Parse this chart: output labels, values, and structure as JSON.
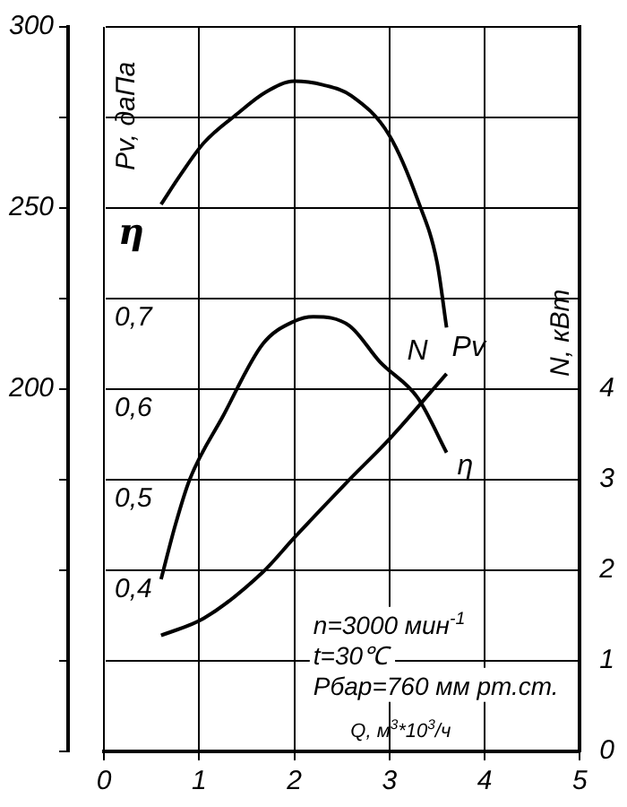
{
  "chart_data": {
    "type": "line",
    "xlabel": "Q, м$^{3}$*10$^{3}$/ч",
    "ylabel": "Pv, даПа",
    "y2label": "N, кВт",
    "y3label": "η",
    "xlim": [
      0,
      5
    ],
    "xticks": [
      0,
      1,
      2,
      3,
      4,
      5
    ],
    "ylim": [
      100,
      300
    ],
    "yticks": [
      {
        "value": 100,
        "label": null
      },
      {
        "value": 125,
        "label": null
      },
      {
        "value": 150,
        "label": null
      },
      {
        "value": 175,
        "label": null
      },
      200,
      {
        "value": 225,
        "label": null
      },
      250,
      {
        "value": 275,
        "label": null
      },
      300
    ],
    "y2lim": [
      0,
      8
    ],
    "y2ticks": [
      0,
      1,
      2,
      3,
      4
    ],
    "y3lim": [
      0.2,
      1.0
    ],
    "y3ticks": [
      {
        "value": 0.4,
        "label": "0,4"
      },
      {
        "value": 0.5,
        "label": "0,5"
      },
      {
        "value": 0.6,
        "label": "0,6"
      },
      {
        "value": 0.7,
        "label": "0,7"
      }
    ],
    "grid": true,
    "legend": false,
    "marker": "none",
    "line_style": "solid",
    "series": [
      {
        "name": "Pv",
        "color": "#000000",
        "x": [
          0.6,
          0.8,
          1.05,
          1.4,
          1.7,
          2.0,
          2.3,
          2.6,
          3.0,
          3.3,
          3.5,
          3.6
        ],
        "values": [
          251,
          259,
          268,
          276,
          282,
          285,
          284,
          281,
          270,
          252,
          235,
          217
        ]
      },
      {
        "name": "η",
        "color": "#000000",
        "axis": "y3",
        "x": [
          0.6,
          0.75,
          0.9,
          1.25,
          1.67,
          2.0,
          2.2,
          2.58,
          2.9,
          3.3,
          3.6
        ],
        "values": [
          0.39,
          0.45,
          0.5,
          0.57,
          0.65,
          0.675,
          0.68,
          0.67,
          0.63,
          0.59,
          0.53
        ]
      },
      {
        "name": "N",
        "color": "#000000",
        "axis": "y2",
        "x": [
          0.6,
          1.05,
          1.67,
          2.0,
          2.55,
          3.0,
          3.6
        ],
        "values": [
          1.28,
          1.47,
          1.98,
          2.36,
          2.97,
          3.45,
          4.17
        ]
      }
    ],
    "annotations": [
      "n=3000 мин$^{-1}$",
      "t=30℃",
      "Рбар=760 мм рт.ст."
    ]
  }
}
